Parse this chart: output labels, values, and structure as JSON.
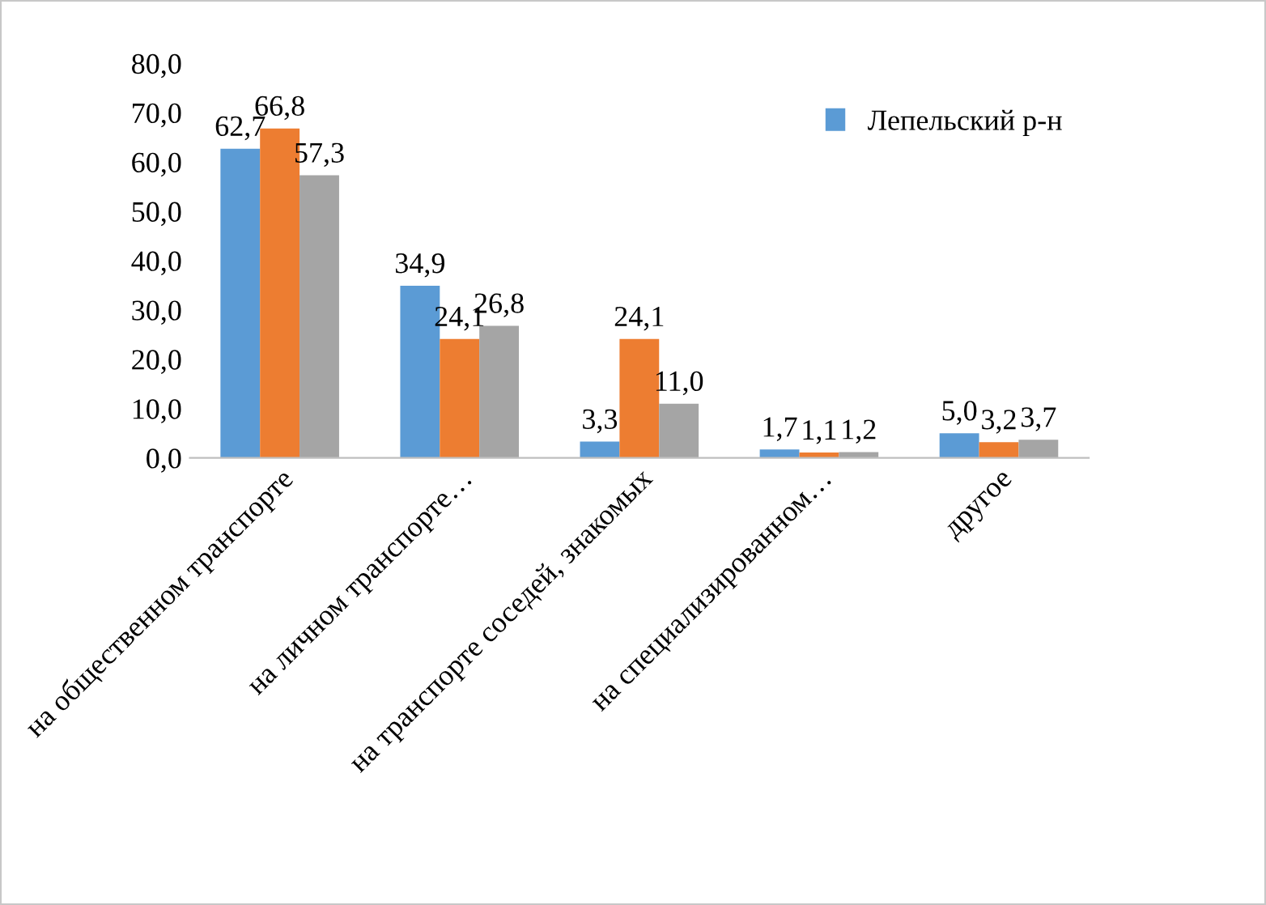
{
  "chart_data": {
    "type": "bar",
    "categories": [
      "на общественном транспорте",
      "на личном транспорте…",
      "на транспорте соседей, знакомых",
      "на специализированном…",
      "другое"
    ],
    "series": [
      {
        "name": "Лепельский р-н",
        "color": "#5b9bd5",
        "values": [
          62.7,
          34.9,
          3.3,
          1.7,
          5.0
        ],
        "value_labels": [
          "62,7",
          "34,9",
          "3,3",
          "1,7",
          "5,0"
        ]
      },
      {
        "color": "#ed7d31",
        "values": [
          66.8,
          24.1,
          24.1,
          1.1,
          3.2
        ],
        "value_labels": [
          "66,8",
          "24,1",
          "24,1",
          "1,1",
          "3,2"
        ]
      },
      {
        "color": "#a5a5a5",
        "values": [
          57.3,
          26.8,
          11.0,
          1.2,
          3.7
        ],
        "value_labels": [
          "57,3",
          "26,8",
          "11,0",
          "1,2",
          "3,7"
        ]
      }
    ],
    "ylim": [
      0,
      80
    ],
    "yticks": [
      {
        "value": 0,
        "label": "0,0"
      },
      {
        "value": 10,
        "label": "10,0"
      },
      {
        "value": 20,
        "label": "20,0"
      },
      {
        "value": 30,
        "label": "30,0"
      },
      {
        "value": 40,
        "label": "40,0"
      },
      {
        "value": 50,
        "label": "50,0"
      },
      {
        "value": 60,
        "label": "60,0"
      },
      {
        "value": 70,
        "label": "70,0"
      },
      {
        "value": 80,
        "label": "80,0"
      }
    ],
    "grid": false,
    "legend": "top right"
  }
}
